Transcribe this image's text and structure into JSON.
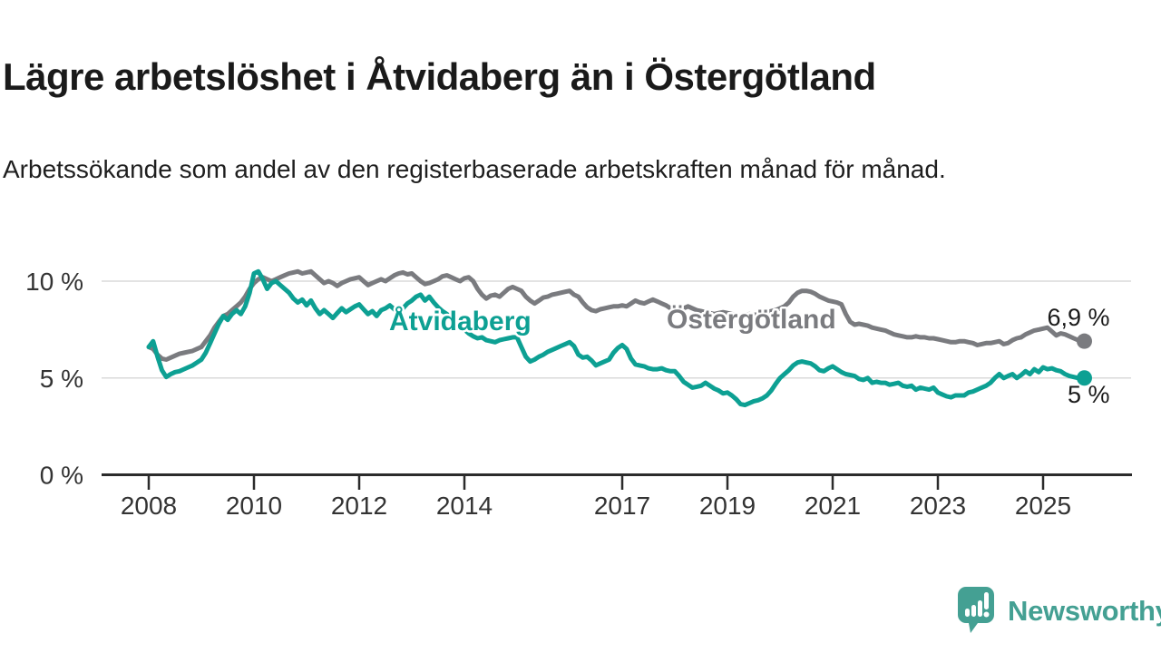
{
  "title": "Lägre arbetslöshet i Åtvidaberg än i Östergötland",
  "subtitle": "Arbetssökande som andel av den registerbaserade arbetskraften månad för månad.",
  "logo": {
    "text": "Newsworthy",
    "color": "#44A093",
    "icon": "newsworthy-bubble-chart-icon"
  },
  "colors": {
    "accent_teal": "#0DA093",
    "accent_gray": "#7A7B7F",
    "axis": "#2b2b2b",
    "grid": "#dadada",
    "tick_label": "#333333",
    "value_label": "#1a1a1a",
    "background": "#ffffff"
  },
  "chart_data": {
    "type": "line",
    "unit": "%",
    "grid": "horizontal-only",
    "legend_position": "inline-labels-on-lines",
    "x_start_year": 2008,
    "x_resolution": "monthly",
    "x_end": "2025-10",
    "ylim": [
      0,
      11.6
    ],
    "y_ticks": [
      {
        "value": 0,
        "label": "0 %"
      },
      {
        "value": 5,
        "label": "5 %"
      },
      {
        "value": 10,
        "label": "10 %"
      }
    ],
    "x_tick_years": [
      2008,
      2010,
      2012,
      2014,
      2017,
      2019,
      2021,
      2023,
      2025
    ],
    "series": [
      {
        "name": "Östergötland",
        "color": "#7A7B7F",
        "end_label": "6,9 %",
        "end_value": 6.9,
        "end_label_position": "above",
        "values": [
          6.6,
          6.5,
          6.2,
          6.0,
          5.95,
          6.05,
          6.15,
          6.25,
          6.3,
          6.35,
          6.4,
          6.5,
          6.6,
          6.9,
          7.2,
          7.6,
          7.9,
          8.2,
          8.3,
          8.5,
          8.7,
          8.9,
          9.2,
          9.6,
          9.9,
          10.1,
          10.2,
          10.1,
          10.0,
          10.1,
          10.2,
          10.3,
          10.4,
          10.45,
          10.5,
          10.4,
          10.45,
          10.5,
          10.3,
          10.1,
          9.9,
          10.0,
          9.9,
          9.75,
          9.9,
          10.0,
          10.1,
          10.15,
          10.2,
          10.0,
          9.8,
          9.9,
          10.0,
          10.1,
          10.0,
          10.15,
          10.3,
          10.4,
          10.45,
          10.35,
          10.4,
          10.2,
          10.0,
          9.85,
          9.9,
          10.0,
          10.1,
          10.25,
          10.3,
          10.2,
          10.1,
          10.0,
          10.15,
          10.2,
          10.0,
          9.6,
          9.3,
          9.1,
          9.25,
          9.3,
          9.2,
          9.4,
          9.6,
          9.7,
          9.6,
          9.5,
          9.2,
          9.0,
          8.85,
          9.0,
          9.15,
          9.2,
          9.3,
          9.35,
          9.4,
          9.45,
          9.5,
          9.3,
          9.2,
          8.9,
          8.65,
          8.5,
          8.45,
          8.55,
          8.6,
          8.65,
          8.7,
          8.7,
          8.75,
          8.7,
          8.85,
          9.0,
          8.9,
          8.85,
          8.95,
          9.05,
          8.95,
          8.85,
          8.75,
          8.6,
          8.45,
          8.5,
          8.6,
          8.7,
          8.6,
          8.5,
          8.45,
          8.4,
          8.35,
          8.3,
          8.35,
          8.4,
          8.35,
          8.3,
          8.25,
          8.2,
          8.25,
          8.3,
          8.25,
          8.3,
          8.35,
          8.4,
          8.45,
          8.5,
          8.6,
          8.7,
          8.9,
          9.2,
          9.4,
          9.5,
          9.5,
          9.45,
          9.35,
          9.2,
          9.1,
          9.0,
          8.95,
          8.9,
          8.8,
          8.3,
          7.9,
          7.75,
          7.8,
          7.75,
          7.7,
          7.6,
          7.55,
          7.5,
          7.45,
          7.35,
          7.25,
          7.2,
          7.15,
          7.1,
          7.1,
          7.15,
          7.1,
          7.1,
          7.05,
          7.05,
          7.0,
          6.95,
          6.9,
          6.85,
          6.85,
          6.9,
          6.9,
          6.85,
          6.8,
          6.7,
          6.75,
          6.8,
          6.8,
          6.85,
          6.9,
          6.75,
          6.8,
          6.95,
          7.05,
          7.1,
          7.25,
          7.35,
          7.45,
          7.5,
          7.55,
          7.6,
          7.4,
          7.2,
          7.3,
          7.25,
          7.15,
          7.05,
          6.95,
          6.9
        ]
      },
      {
        "name": "Åtvidaberg",
        "color": "#0DA093",
        "end_label": "5 %",
        "end_value": 5.0,
        "end_label_position": "below",
        "values": [
          6.6,
          6.9,
          6.1,
          5.4,
          5.05,
          5.2,
          5.3,
          5.35,
          5.45,
          5.55,
          5.65,
          5.8,
          5.95,
          6.3,
          6.8,
          7.3,
          7.8,
          8.2,
          8.0,
          8.3,
          8.5,
          8.3,
          8.7,
          9.4,
          10.4,
          10.5,
          10.1,
          9.6,
          9.9,
          10.0,
          9.8,
          9.6,
          9.4,
          9.1,
          8.9,
          9.05,
          8.75,
          9.0,
          8.6,
          8.3,
          8.5,
          8.3,
          8.1,
          8.35,
          8.6,
          8.4,
          8.55,
          8.7,
          8.8,
          8.55,
          8.3,
          8.45,
          8.2,
          8.5,
          8.6,
          8.75,
          8.55,
          8.4,
          8.6,
          8.85,
          9.0,
          9.2,
          9.3,
          9.0,
          9.2,
          8.9,
          8.65,
          8.45,
          8.3,
          8.1,
          7.95,
          7.8,
          7.5,
          7.3,
          7.15,
          7.05,
          7.1,
          6.95,
          6.9,
          6.85,
          6.95,
          7.0,
          7.05,
          7.1,
          7.1,
          6.6,
          6.1,
          5.85,
          5.95,
          6.1,
          6.2,
          6.35,
          6.45,
          6.55,
          6.65,
          6.75,
          6.85,
          6.65,
          6.2,
          6.05,
          6.1,
          5.9,
          5.65,
          5.75,
          5.85,
          5.95,
          6.3,
          6.55,
          6.7,
          6.5,
          6.0,
          5.7,
          5.65,
          5.6,
          5.5,
          5.45,
          5.45,
          5.5,
          5.4,
          5.35,
          5.35,
          5.1,
          4.8,
          4.65,
          4.5,
          4.55,
          4.6,
          4.75,
          4.6,
          4.45,
          4.35,
          4.2,
          4.25,
          4.1,
          3.9,
          3.65,
          3.6,
          3.7,
          3.8,
          3.85,
          3.95,
          4.1,
          4.35,
          4.7,
          5.0,
          5.2,
          5.4,
          5.65,
          5.8,
          5.85,
          5.8,
          5.75,
          5.6,
          5.4,
          5.35,
          5.5,
          5.6,
          5.45,
          5.3,
          5.2,
          5.15,
          5.1,
          4.95,
          4.9,
          5.0,
          4.75,
          4.8,
          4.75,
          4.75,
          4.65,
          4.7,
          4.75,
          4.6,
          4.55,
          4.6,
          4.4,
          4.5,
          4.45,
          4.4,
          4.5,
          4.25,
          4.15,
          4.05,
          4.0,
          4.1,
          4.1,
          4.1,
          4.25,
          4.3,
          4.4,
          4.5,
          4.6,
          4.75,
          5.0,
          5.2,
          5.0,
          5.1,
          5.2,
          5.0,
          5.15,
          5.35,
          5.2,
          5.45,
          5.3,
          5.55,
          5.45,
          5.5,
          5.4,
          5.35,
          5.2,
          5.1,
          5.05,
          5.0,
          5.0
        ]
      }
    ]
  }
}
